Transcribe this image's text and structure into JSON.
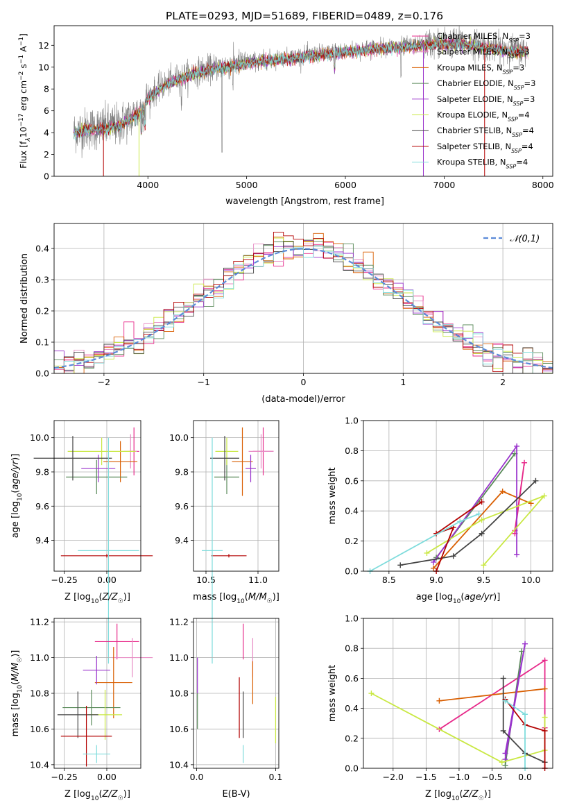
{
  "title": "PLATE=0293, MJD=51689, FIBERID=0489, z=0.176",
  "models": [
    {
      "name": "Chabrier MILES",
      "n": "3",
      "color": "#e7298a",
      "light": "#e78ac3"
    },
    {
      "name": "Salpeter MILES",
      "n": "3",
      "color": "#e78ac3",
      "light": "#e78ac3"
    },
    {
      "name": "Kroupa MILES",
      "n": "3",
      "color": "#d95f02",
      "light": "#d95f02"
    },
    {
      "name": "Chabrier ELODIE",
      "n": "3",
      "color": "#5a8a5a",
      "light": "#5a8a5a"
    },
    {
      "name": "Salpeter ELODIE",
      "n": "3",
      "color": "#9932cc",
      "light": "#9932cc"
    },
    {
      "name": "Kroupa ELODIE",
      "n": "4",
      "color": "#c9e843",
      "light": "#c9e843"
    },
    {
      "name": "Chabrier STELIB",
      "n": "4",
      "color": "#444444",
      "light": "#444444"
    },
    {
      "name": "Salpeter STELIB",
      "n": "4",
      "color": "#b30000",
      "light": "#b30000"
    },
    {
      "name": "Kroupa STELIB",
      "n": "4",
      "color": "#7fdcdc",
      "light": "#7fdcdc"
    }
  ],
  "chart_data": [
    {
      "type": "line",
      "id": "spectrum",
      "xlabel": "wavelength [Angstrom, rest frame]",
      "ylabel_html": "Flux [f_λ 10^-17 erg cm^-2 s^-1 A^-1]",
      "xlim": [
        3050,
        8100
      ],
      "ylim": [
        0,
        13.8
      ],
      "xticks": [
        4000,
        5000,
        6000,
        7000,
        8000
      ],
      "yticks": [
        0,
        2,
        4,
        6,
        8,
        10,
        12
      ],
      "data_color": "#808080",
      "continuum": {
        "x": [
          3250,
          3400,
          3550,
          3700,
          3850,
          3950,
          4000,
          4150,
          4300,
          4500,
          4700,
          4900,
          5100,
          5300,
          5500,
          5700,
          5900,
          6100,
          6300,
          6500,
          6700,
          6900,
          7100,
          7300,
          7500,
          7700,
          7850
        ],
        "y": [
          4.1,
          4.4,
          4.5,
          4.7,
          5.5,
          6.2,
          7.3,
          8.3,
          9.0,
          9.6,
          10.0,
          10.3,
          10.6,
          10.8,
          11.0,
          11.2,
          11.4,
          11.6,
          11.8,
          11.9,
          12.0,
          12.2,
          12.3,
          12.1,
          11.8,
          11.6,
          11.5
        ]
      },
      "model_cutoffs": [
        {
          "x": 3550,
          "model": 7
        },
        {
          "x": 3910,
          "model": 5
        },
        {
          "x": 6790,
          "model": 4
        },
        {
          "x": 7410,
          "model": 7
        }
      ],
      "legend": "upper right"
    },
    {
      "type": "histogram",
      "id": "residuals",
      "xlabel": "(data-model)/error",
      "ylabel": "Normed distribution",
      "xlim": [
        -2.5,
        2.5
      ],
      "ylim": [
        0,
        0.48
      ],
      "xticks": [
        -2,
        -1,
        0,
        1,
        2
      ],
      "yticks": [
        0.0,
        0.1,
        0.2,
        0.3,
        0.4
      ],
      "bin_width": 0.1,
      "reference": {
        "label": "𝒩(0,1)",
        "color": "#5b8ad8",
        "mean": 0,
        "sigma": 1
      },
      "legend": "upper right",
      "grid": true
    },
    {
      "type": "scatter",
      "id": "age-vs-Z",
      "xlabel": "Z [log10(Z/Z☉)]",
      "ylabel": "age [log10(age/yr)]",
      "xlim": [
        -0.31,
        0.2
      ],
      "ylim": [
        9.22,
        10.1
      ],
      "xticks": [
        -0.25,
        0.0
      ],
      "yticks": [
        9.4,
        9.6,
        9.8,
        10.0
      ],
      "grid": true,
      "points": [
        {
          "x": 0.16,
          "y": 9.92,
          "xerr": 0.03,
          "yerr": 0.14,
          "model": 0
        },
        {
          "x": 0.14,
          "y": 9.92,
          "xerr": 0.04,
          "yerr": 0.1,
          "model": 1
        },
        {
          "x": 0.08,
          "y": 9.86,
          "xerr": 0.1,
          "yerr": 0.12,
          "model": 2
        },
        {
          "x": -0.06,
          "y": 9.77,
          "xerr": 0.18,
          "yerr": 0.1,
          "model": 3
        },
        {
          "x": -0.05,
          "y": 9.82,
          "xerr": 0.1,
          "yerr": 0.08,
          "model": 4
        },
        {
          "x": -0.03,
          "y": 9.92,
          "xerr": 0.2,
          "yerr": 0.08,
          "model": 5
        },
        {
          "x": -0.2,
          "y": 9.88,
          "xerr": 0.23,
          "yerr": 0.13,
          "model": 6
        },
        {
          "x": 0.0,
          "y": 9.31,
          "xerr": 0.27,
          "yerr": 0.01,
          "model": 7
        },
        {
          "x": 0.01,
          "y": 9.34,
          "xerr": 0.18,
          "yerr": 0.66,
          "model": 8
        }
      ]
    },
    {
      "type": "scatter",
      "id": "age-vs-mass",
      "xlabel": "mass [log10(M/M☉)]",
      "ylabel": "",
      "xlim": [
        10.38,
        11.2
      ],
      "ylim": [
        9.22,
        10.1
      ],
      "xticks": [
        10.5,
        11.0
      ],
      "yticks": [
        9.4,
        9.6,
        9.8,
        10.0
      ],
      "grid": true,
      "points": [
        {
          "x": 11.05,
          "y": 9.92,
          "xerr": 0.1,
          "yerr": 0.14,
          "model": 0
        },
        {
          "x": 11.03,
          "y": 9.92,
          "xerr": 0.12,
          "yerr": 0.1,
          "model": 1
        },
        {
          "x": 10.85,
          "y": 9.86,
          "xerr": 0.1,
          "yerr": 0.2,
          "model": 2
        },
        {
          "x": 10.7,
          "y": 9.77,
          "xerr": 0.12,
          "yerr": 0.1,
          "model": 3
        },
        {
          "x": 10.93,
          "y": 9.82,
          "xerr": 0.05,
          "yerr": 0.08,
          "model": 4
        },
        {
          "x": 10.7,
          "y": 9.92,
          "xerr": 0.11,
          "yerr": 0.08,
          "model": 5
        },
        {
          "x": 10.68,
          "y": 9.88,
          "xerr": 0.14,
          "yerr": 0.13,
          "model": 6
        },
        {
          "x": 10.72,
          "y": 9.31,
          "xerr": 0.17,
          "yerr": 0.01,
          "model": 7
        },
        {
          "x": 10.56,
          "y": 9.34,
          "xerr": 0.1,
          "yerr": 0.66,
          "model": 8
        }
      ]
    },
    {
      "type": "line",
      "id": "weight-vs-age",
      "xlabel": "age [log10(age/yr)]",
      "ylabel": "mass weight",
      "xlim": [
        8.23,
        10.23
      ],
      "ylim": [
        0,
        1.0
      ],
      "xticks": [
        8.5,
        9.0,
        9.5,
        10.0
      ],
      "yticks": [
        0.0,
        0.2,
        0.4,
        0.6,
        0.8,
        1.0
      ],
      "grid": true,
      "series": [
        {
          "model": 0,
          "x": [
            9.83,
            9.93,
            9.83
          ],
          "y": [
            0.25,
            0.72,
            0.27
          ]
        },
        {
          "model": 2,
          "x": [
            8.97,
            9.7,
            10.0
          ],
          "y": [
            0.02,
            0.53,
            0.45
          ]
        },
        {
          "model": 3,
          "x": [
            9.0,
            9.83,
            9.0
          ],
          "y": [
            0.09,
            0.78,
            0.09
          ]
        },
        {
          "model": 4,
          "x": [
            8.97,
            9.85,
            9.85
          ],
          "y": [
            0.06,
            0.83,
            0.11
          ]
        },
        {
          "model": 5,
          "x": [
            8.9,
            9.48,
            10.14,
            9.5
          ],
          "y": [
            0.12,
            0.34,
            0.5,
            0.04
          ]
        },
        {
          "model": 6,
          "x": [
            8.62,
            9.18,
            9.48,
            10.05
          ],
          "y": [
            0.04,
            0.1,
            0.25,
            0.6
          ]
        },
        {
          "model": 7,
          "x": [
            9.0,
            9.18,
            9.0,
            9.48
          ],
          "y": [
            0.0,
            0.29,
            0.25,
            0.46
          ]
        },
        {
          "model": 8,
          "x": [
            8.3,
            9.25,
            9.45
          ],
          "y": [
            0.0,
            0.33,
            0.38
          ]
        }
      ]
    },
    {
      "type": "scatter",
      "id": "mass-vs-Z",
      "xlabel": "Z [log10(Z/Z☉)]",
      "ylabel": "mass [log10(M/M☉)]",
      "xlim": [
        -0.31,
        0.2
      ],
      "ylim": [
        10.38,
        11.22
      ],
      "xticks": [
        -0.25,
        0.0
      ],
      "yticks": [
        10.4,
        10.6,
        10.8,
        11.0,
        11.2
      ],
      "grid": true,
      "points": [
        {
          "x": 0.06,
          "y": 11.09,
          "xerr": 0.13,
          "yerr": 0.1,
          "model": 0
        },
        {
          "x": 0.15,
          "y": 11.0,
          "xerr": 0.12,
          "yerr": 0.11,
          "model": 1
        },
        {
          "x": 0.04,
          "y": 10.86,
          "xerr": 0.11,
          "yerr": 0.2,
          "model": 2
        },
        {
          "x": -0.09,
          "y": 10.72,
          "xerr": 0.17,
          "yerr": 0.1,
          "model": 3
        },
        {
          "x": -0.06,
          "y": 10.93,
          "xerr": 0.08,
          "yerr": 0.08,
          "model": 4
        },
        {
          "x": -0.01,
          "y": 10.68,
          "xerr": 0.1,
          "yerr": 0.14,
          "model": 5
        },
        {
          "x": -0.17,
          "y": 10.68,
          "xerr": 0.12,
          "yerr": 0.13,
          "model": 6
        },
        {
          "x": -0.12,
          "y": 10.56,
          "xerr": 0.15,
          "yerr": 0.17,
          "model": 7
        },
        {
          "x": -0.06,
          "y": 10.46,
          "xerr": 0.08,
          "yerr": 0.05,
          "model": 8
        }
      ]
    },
    {
      "type": "scatter",
      "id": "mass-vs-ebv",
      "xlabel": "E(B-V)",
      "ylabel": "",
      "xlim": [
        -0.004,
        0.104
      ],
      "ylim": [
        10.38,
        11.22
      ],
      "xticks": [
        0.0,
        0.1
      ],
      "yticks": [
        10.4,
        10.6,
        10.8,
        11.0,
        11.2
      ],
      "grid": true,
      "points": [
        {
          "x": 0.059,
          "y": 11.09,
          "xerr": 0,
          "yerr": 0.1,
          "model": 0
        },
        {
          "x": 0.071,
          "y": 11.0,
          "xerr": 0,
          "yerr": 0.11,
          "model": 1
        },
        {
          "x": 0.071,
          "y": 10.86,
          "xerr": 0,
          "yerr": 0.12,
          "model": 2
        },
        {
          "x": 0.001,
          "y": 10.7,
          "xerr": 0,
          "yerr": 0.1,
          "model": 3
        },
        {
          "x": 0.001,
          "y": 10.9,
          "xerr": 0,
          "yerr": 0.1,
          "model": 4
        },
        {
          "x": 0.1,
          "y": 10.65,
          "xerr": 0,
          "yerr": 0.13,
          "model": 5
        },
        {
          "x": 0.059,
          "y": 10.68,
          "xerr": 0,
          "yerr": 0.13,
          "model": 6
        },
        {
          "x": 0.054,
          "y": 10.72,
          "xerr": 0,
          "yerr": 0.17,
          "model": 7
        },
        {
          "x": 0.059,
          "y": 10.46,
          "xerr": 0,
          "yerr": 0.05,
          "model": 8
        }
      ]
    },
    {
      "type": "line",
      "id": "weight-vs-Z",
      "xlabel": "Z [log10(Z/Z☉)]",
      "ylabel": "mass weight",
      "xlim": [
        -2.45,
        0.42
      ],
      "ylim": [
        0,
        1.0
      ],
      "xticks": [
        -2.0,
        -1.5,
        -1.0,
        -0.5,
        0.0
      ],
      "yticks": [
        0.0,
        0.2,
        0.4,
        0.6,
        0.8,
        1.0
      ],
      "grid": true,
      "series": [
        {
          "model": 0,
          "x": [
            -1.3,
            0.3,
            0.3
          ],
          "y": [
            0.26,
            0.72,
            0.27
          ]
        },
        {
          "model": 2,
          "x": [
            -1.3,
            0.3
          ],
          "y": [
            0.45,
            0.53
          ]
        },
        {
          "model": 3,
          "x": [
            -0.3,
            -0.05
          ],
          "y": [
            0.02,
            0.78
          ]
        },
        {
          "model": 4,
          "x": [
            -0.3,
            0.0,
            -0.3
          ],
          "y": [
            0.1,
            0.83,
            0.06
          ]
        },
        {
          "model": 5,
          "x": [
            -2.33,
            -0.35,
            0.3,
            0.3
          ],
          "y": [
            0.5,
            0.04,
            0.12,
            0.34
          ]
        },
        {
          "model": 6,
          "x": [
            -0.33,
            -0.33,
            0.0,
            0.3
          ],
          "y": [
            0.6,
            0.25,
            0.1,
            0.04
          ]
        },
        {
          "model": 7,
          "x": [
            -0.3,
            0.0,
            0.3,
            0.3
          ],
          "y": [
            0.46,
            0.29,
            0.25,
            0.0
          ]
        },
        {
          "model": 8,
          "x": [
            -0.3,
            0.0,
            0.0
          ],
          "y": [
            0.45,
            0.36,
            0.0
          ]
        }
      ]
    }
  ]
}
